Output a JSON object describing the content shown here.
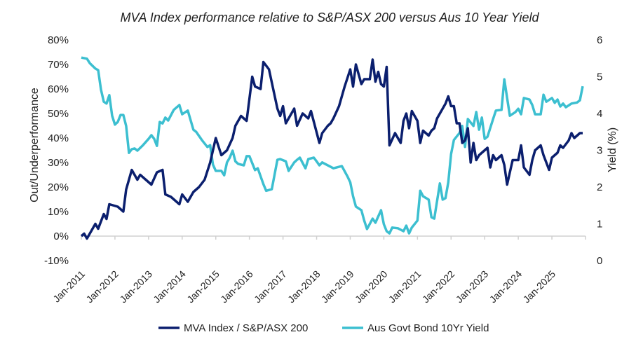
{
  "chart_data": {
    "type": "line",
    "title": "MVA Index performance relative to S&P/ASX 200 versus Aus 10 Year Yield",
    "ylabel": "Out/Underperformance",
    "y2label": "Yield (%)",
    "ylim": [
      -10,
      80
    ],
    "y2lim": [
      0,
      6
    ],
    "yticks": [
      "-10%",
      "0%",
      "10%",
      "20%",
      "30%",
      "40%",
      "50%",
      "60%",
      "70%",
      "80%"
    ],
    "y2ticks": [
      "0",
      "1",
      "2",
      "3",
      "4",
      "5",
      "6"
    ],
    "xticks": [
      "Jan-2011",
      "Jan-2012",
      "Jan-2013",
      "Jan-2014",
      "Jan-2015",
      "Jan-2016",
      "Jan-2017",
      "Jan-2018",
      "Jan-2019",
      "Jan-2020",
      "Jan-2021",
      "Jan-2022",
      "Jan-2023",
      "Jan-2024",
      "Jan-2025"
    ],
    "xlim": [
      "2011-01",
      "2026-01"
    ],
    "grid": false,
    "legend_position": "bottom",
    "series": [
      {
        "name": "MVA Index / S&P/ASX 200",
        "axis": "left",
        "unit": "%",
        "color": "#0B1F6E",
        "points": [
          [
            "2011-01",
            0
          ],
          [
            "2011-02",
            1
          ],
          [
            "2011-03",
            -1
          ],
          [
            "2011-06",
            5
          ],
          [
            "2011-07",
            3
          ],
          [
            "2011-09",
            9
          ],
          [
            "2011-10",
            7
          ],
          [
            "2011-11",
            13
          ],
          [
            "2012-02",
            12
          ],
          [
            "2012-04",
            10
          ],
          [
            "2012-05",
            19
          ],
          [
            "2012-07",
            27
          ],
          [
            "2012-09",
            23
          ],
          [
            "2012-10",
            25
          ],
          [
            "2012-12",
            23
          ],
          [
            "2013-02",
            21
          ],
          [
            "2013-04",
            26
          ],
          [
            "2013-06",
            27
          ],
          [
            "2013-07",
            17
          ],
          [
            "2013-09",
            16
          ],
          [
            "2013-12",
            13
          ],
          [
            "2014-01",
            17
          ],
          [
            "2014-03",
            14
          ],
          [
            "2014-05",
            18
          ],
          [
            "2014-07",
            20
          ],
          [
            "2014-09",
            23
          ],
          [
            "2014-11",
            30
          ],
          [
            "2015-01",
            40
          ],
          [
            "2015-03",
            33
          ],
          [
            "2015-05",
            35
          ],
          [
            "2015-07",
            40
          ],
          [
            "2015-08",
            45
          ],
          [
            "2015-10",
            49
          ],
          [
            "2015-12",
            47
          ],
          [
            "2016-02",
            65
          ],
          [
            "2016-03",
            61
          ],
          [
            "2016-05",
            60
          ],
          [
            "2016-06",
            71
          ],
          [
            "2016-08",
            68
          ],
          [
            "2016-11",
            52
          ],
          [
            "2016-12",
            49
          ],
          [
            "2017-01",
            53
          ],
          [
            "2017-02",
            46
          ],
          [
            "2017-04",
            50
          ],
          [
            "2017-05",
            52
          ],
          [
            "2017-06",
            45
          ],
          [
            "2017-08",
            50
          ],
          [
            "2017-10",
            48
          ],
          [
            "2017-11",
            51
          ],
          [
            "2018-02",
            38
          ],
          [
            "2018-03",
            42
          ],
          [
            "2018-05",
            45
          ],
          [
            "2018-06",
            46
          ],
          [
            "2018-07",
            48
          ],
          [
            "2018-09",
            53
          ],
          [
            "2018-11",
            61
          ],
          [
            "2019-01",
            68
          ],
          [
            "2019-02",
            61
          ],
          [
            "2019-03",
            70
          ],
          [
            "2019-05",
            62
          ],
          [
            "2019-06",
            64
          ],
          [
            "2019-08",
            64
          ],
          [
            "2019-09",
            72
          ],
          [
            "2019-10",
            63
          ],
          [
            "2019-11",
            67
          ],
          [
            "2019-12",
            62
          ],
          [
            "2020-01",
            61
          ],
          [
            "2020-02",
            69
          ],
          [
            "2020-03",
            37
          ],
          [
            "2020-05",
            42
          ],
          [
            "2020-07",
            38
          ],
          [
            "2020-08",
            47
          ],
          [
            "2020-09",
            50
          ],
          [
            "2020-10",
            44
          ],
          [
            "2020-11",
            51
          ],
          [
            "2021-01",
            47
          ],
          [
            "2021-02",
            38
          ],
          [
            "2021-03",
            43
          ],
          [
            "2021-05",
            41
          ],
          [
            "2021-06",
            43
          ],
          [
            "2021-07",
            44
          ],
          [
            "2021-08",
            48
          ],
          [
            "2021-09",
            50
          ],
          [
            "2021-11",
            54
          ],
          [
            "2021-12",
            57
          ],
          [
            "2022-01",
            53
          ],
          [
            "2022-02",
            53
          ],
          [
            "2022-03",
            46
          ],
          [
            "2022-04",
            46
          ],
          [
            "2022-05",
            38
          ],
          [
            "2022-06",
            39
          ],
          [
            "2022-07",
            44
          ],
          [
            "2022-08",
            30
          ],
          [
            "2022-09",
            38
          ],
          [
            "2022-10",
            31
          ],
          [
            "2022-11",
            33
          ],
          [
            "2022-12",
            34
          ],
          [
            "2023-02",
            36
          ],
          [
            "2023-03",
            28
          ],
          [
            "2023-04",
            33
          ],
          [
            "2023-05",
            31
          ],
          [
            "2023-07",
            33
          ],
          [
            "2023-08",
            29
          ],
          [
            "2023-09",
            21
          ],
          [
            "2023-10",
            26
          ],
          [
            "2023-11",
            31
          ],
          [
            "2024-01",
            31
          ],
          [
            "2024-02",
            37
          ],
          [
            "2024-03",
            28
          ],
          [
            "2024-05",
            25
          ],
          [
            "2024-06",
            31
          ],
          [
            "2024-07",
            35
          ],
          [
            "2024-09",
            37
          ],
          [
            "2024-10",
            33
          ],
          [
            "2024-12",
            27
          ],
          [
            "2025-01",
            32
          ],
          [
            "2025-03",
            34
          ],
          [
            "2025-04",
            37
          ],
          [
            "2025-05",
            36
          ],
          [
            "2025-07",
            39
          ],
          [
            "2025-08",
            42
          ],
          [
            "2025-09",
            40
          ],
          [
            "2025-10",
            41
          ],
          [
            "2025-11",
            42
          ],
          [
            "2025-12",
            42
          ]
        ]
      },
      {
        "name": "Aus Govt Bond 10Yr Yield",
        "axis": "right",
        "unit": "%",
        "color": "#3CBFD0",
        "points": [
          [
            "2011-01",
            5.52
          ],
          [
            "2011-03",
            5.49
          ],
          [
            "2011-04",
            5.37
          ],
          [
            "2011-06",
            5.22
          ],
          [
            "2011-07",
            5.18
          ],
          [
            "2011-08",
            4.65
          ],
          [
            "2011-09",
            4.32
          ],
          [
            "2011-10",
            4.27
          ],
          [
            "2011-11",
            4.5
          ],
          [
            "2011-12",
            3.94
          ],
          [
            "2012-01",
            3.7
          ],
          [
            "2012-02",
            3.77
          ],
          [
            "2012-03",
            3.96
          ],
          [
            "2012-04",
            3.96
          ],
          [
            "2012-05",
            3.66
          ],
          [
            "2012-06",
            2.93
          ],
          [
            "2012-07",
            3.03
          ],
          [
            "2012-08",
            3.05
          ],
          [
            "2012-09",
            2.99
          ],
          [
            "2012-11",
            3.14
          ],
          [
            "2013-01",
            3.31
          ],
          [
            "2013-02",
            3.41
          ],
          [
            "2013-03",
            3.31
          ],
          [
            "2013-04",
            3.12
          ],
          [
            "2013-05",
            3.77
          ],
          [
            "2013-06",
            3.73
          ],
          [
            "2013-07",
            3.89
          ],
          [
            "2013-08",
            3.81
          ],
          [
            "2013-10",
            4.1
          ],
          [
            "2013-12",
            4.23
          ],
          [
            "2014-01",
            3.98
          ],
          [
            "2014-03",
            4.08
          ],
          [
            "2014-05",
            3.56
          ],
          [
            "2014-06",
            3.5
          ],
          [
            "2014-08",
            3.28
          ],
          [
            "2014-10",
            3.09
          ],
          [
            "2014-11",
            3.14
          ],
          [
            "2014-12",
            2.61
          ],
          [
            "2015-01",
            2.44
          ],
          [
            "2015-03",
            2.44
          ],
          [
            "2015-04",
            2.32
          ],
          [
            "2015-05",
            2.67
          ],
          [
            "2015-06",
            2.8
          ],
          [
            "2015-07",
            2.99
          ],
          [
            "2015-08",
            2.7
          ],
          [
            "2015-09",
            2.63
          ],
          [
            "2015-11",
            2.59
          ],
          [
            "2015-12",
            2.84
          ],
          [
            "2016-01",
            2.84
          ],
          [
            "2016-03",
            2.46
          ],
          [
            "2016-04",
            2.51
          ],
          [
            "2016-06",
            2.08
          ],
          [
            "2016-07",
            1.9
          ],
          [
            "2016-09",
            1.94
          ],
          [
            "2016-11",
            2.74
          ],
          [
            "2016-12",
            2.76
          ],
          [
            "2017-02",
            2.7
          ],
          [
            "2017-03",
            2.44
          ],
          [
            "2017-05",
            2.67
          ],
          [
            "2017-06",
            2.74
          ],
          [
            "2017-07",
            2.8
          ],
          [
            "2017-09",
            2.51
          ],
          [
            "2017-10",
            2.76
          ],
          [
            "2017-12",
            2.8
          ],
          [
            "2018-01",
            2.7
          ],
          [
            "2018-02",
            2.59
          ],
          [
            "2018-03",
            2.67
          ],
          [
            "2018-04",
            2.63
          ],
          [
            "2018-07",
            2.51
          ],
          [
            "2018-10",
            2.57
          ],
          [
            "2018-12",
            2.29
          ],
          [
            "2019-01",
            2.13
          ],
          [
            "2019-02",
            1.75
          ],
          [
            "2019-03",
            1.47
          ],
          [
            "2019-05",
            1.37
          ],
          [
            "2019-06",
            1.09
          ],
          [
            "2019-07",
            0.86
          ],
          [
            "2019-09",
            1.14
          ],
          [
            "2019-10",
            1.03
          ],
          [
            "2019-12",
            1.37
          ],
          [
            "2020-01",
            0.99
          ],
          [
            "2020-02",
            0.8
          ],
          [
            "2020-03",
            0.74
          ],
          [
            "2020-04",
            0.9
          ],
          [
            "2020-06",
            0.88
          ],
          [
            "2020-08",
            0.8
          ],
          [
            "2020-09",
            0.95
          ],
          [
            "2020-10",
            0.74
          ],
          [
            "2020-11",
            0.9
          ],
          [
            "2021-01",
            1.09
          ],
          [
            "2021-02",
            1.9
          ],
          [
            "2021-03",
            1.75
          ],
          [
            "2021-05",
            1.66
          ],
          [
            "2021-06",
            1.18
          ],
          [
            "2021-07",
            1.14
          ],
          [
            "2021-09",
            2.1
          ],
          [
            "2021-10",
            1.66
          ],
          [
            "2021-11",
            1.7
          ],
          [
            "2021-12",
            2.13
          ],
          [
            "2022-01",
            2.9
          ],
          [
            "2022-02",
            3.28
          ],
          [
            "2022-04",
            3.47
          ],
          [
            "2022-05",
            3.66
          ],
          [
            "2022-06",
            3.09
          ],
          [
            "2022-07",
            3.85
          ],
          [
            "2022-09",
            3.66
          ],
          [
            "2022-10",
            4.04
          ],
          [
            "2022-11",
            3.56
          ],
          [
            "2022-12",
            3.89
          ],
          [
            "2023-01",
            3.31
          ],
          [
            "2023-02",
            3.37
          ],
          [
            "2023-04",
            3.85
          ],
          [
            "2023-05",
            4.08
          ],
          [
            "2023-07",
            4.1
          ],
          [
            "2023-08",
            4.93
          ],
          [
            "2023-09",
            4.42
          ],
          [
            "2023-10",
            3.94
          ],
          [
            "2023-12",
            4.04
          ],
          [
            "2024-01",
            4.13
          ],
          [
            "2024-02",
            3.98
          ],
          [
            "2024-03",
            4.42
          ],
          [
            "2024-05",
            4.38
          ],
          [
            "2024-06",
            4.23
          ],
          [
            "2024-07",
            3.98
          ],
          [
            "2024-09",
            3.98
          ],
          [
            "2024-10",
            4.51
          ],
          [
            "2024-11",
            4.32
          ],
          [
            "2025-01",
            4.42
          ],
          [
            "2025-02",
            4.29
          ],
          [
            "2025-03",
            4.38
          ],
          [
            "2025-04",
            4.19
          ],
          [
            "2025-05",
            4.27
          ],
          [
            "2025-06",
            4.17
          ],
          [
            "2025-08",
            4.27
          ],
          [
            "2025-10",
            4.3
          ],
          [
            "2025-11",
            4.36
          ],
          [
            "2025-12",
            4.74
          ]
        ]
      }
    ]
  }
}
